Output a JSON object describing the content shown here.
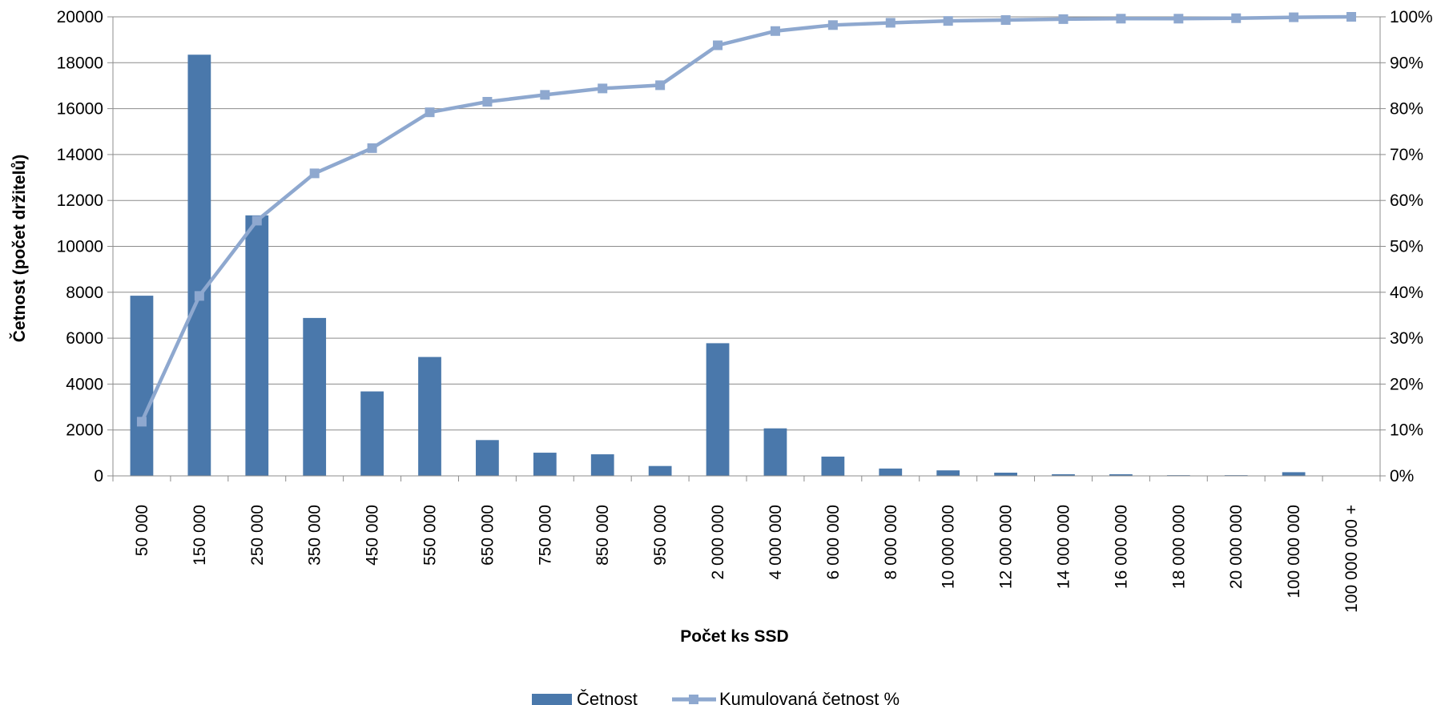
{
  "chart_data": {
    "type": "bar",
    "title": "",
    "xlabel": "Počet ks SSD",
    "ylabel": "Četnost (počet držitelů)",
    "ylim": [
      0,
      20000
    ],
    "y2lim": [
      0,
      100
    ],
    "yticks": [
      "0",
      "2000",
      "4000",
      "6000",
      "8000",
      "10000",
      "12000",
      "14000",
      "16000",
      "18000",
      "20000"
    ],
    "y2ticks": [
      "0%",
      "10%",
      "20%",
      "30%",
      "40%",
      "50%",
      "60%",
      "70%",
      "80%",
      "90%",
      "100%"
    ],
    "categories": [
      "50 000",
      "150 000",
      "250 000",
      "350 000",
      "450 000",
      "550 000",
      "650 000",
      "750 000",
      "850 000",
      "950 000",
      "2 000 000",
      "4 000 000",
      "6 000 000",
      "8 000 000",
      "10 000 000",
      "12 000 000",
      "14 000 000",
      "16 000 000",
      "18 000 000",
      "20 000 000",
      "100 000 000",
      "100 000 000 +"
    ],
    "series": [
      {
        "name": "Četnost",
        "type": "bar",
        "axis": "left",
        "color": "#4a78ab",
        "values": [
          7850,
          18350,
          11350,
          6880,
          3680,
          5180,
          1560,
          1010,
          940,
          430,
          5780,
          2070,
          840,
          320,
          240,
          140,
          70,
          70,
          30,
          30,
          160,
          0
        ]
      },
      {
        "name": "Kumulovaná četnost %",
        "type": "line",
        "axis": "right",
        "color": "#8ea8cf",
        "marker": "square",
        "values": [
          11.8,
          39.2,
          55.6,
          65.9,
          71.4,
          79.2,
          81.5,
          83.0,
          84.4,
          85.1,
          93.8,
          96.9,
          98.2,
          98.7,
          99.1,
          99.3,
          99.5,
          99.6,
          99.6,
          99.7,
          99.9,
          100.0
        ]
      }
    ],
    "grid": true,
    "legend_position": "bottom"
  }
}
